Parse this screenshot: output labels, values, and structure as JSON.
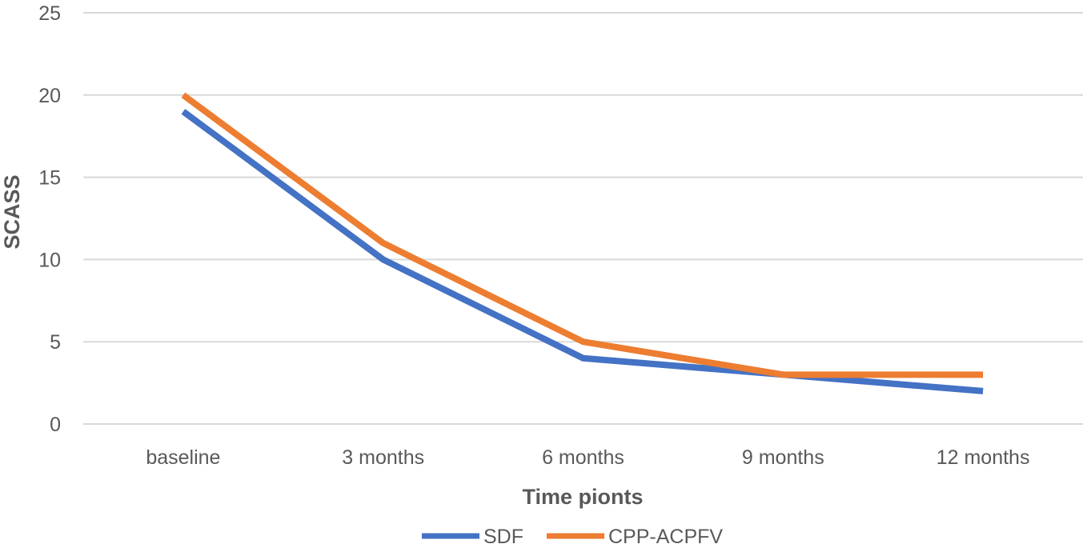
{
  "chart_data": {
    "type": "line",
    "title": "",
    "xlabel": "Time pionts",
    "ylabel": "SCASS",
    "categories": [
      "baseline",
      "3 months",
      "6 months",
      "9 months",
      "12 months"
    ],
    "ylim": [
      0,
      25
    ],
    "yticks": [
      0,
      5,
      10,
      15,
      20,
      25
    ],
    "grid": true,
    "legend_position": "bottom",
    "series": [
      {
        "name": "SDF",
        "color": "#4472c4",
        "values": [
          19,
          10,
          4,
          3,
          2
        ]
      },
      {
        "name": "CPP-ACPFV",
        "color": "#ed7d31",
        "values": [
          20,
          11,
          5,
          3,
          3
        ]
      }
    ]
  }
}
